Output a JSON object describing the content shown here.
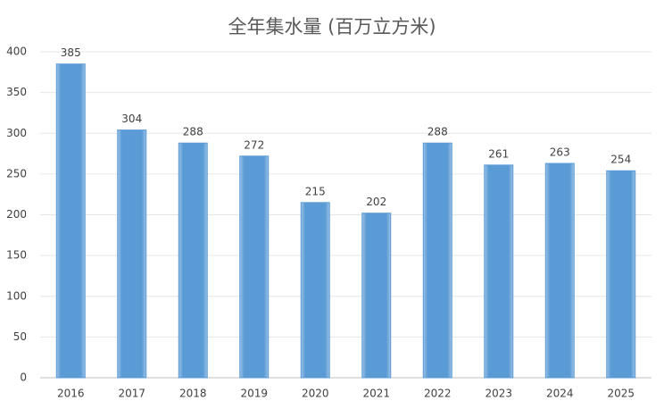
{
  "chart_data": {
    "type": "bar",
    "title": "全年集水量 (百万立方米)",
    "categories": [
      "2016",
      "2017",
      "2018",
      "2019",
      "2020",
      "2021",
      "2022",
      "2023",
      "2024",
      "2025"
    ],
    "values": [
      385,
      304,
      288,
      272,
      215,
      202,
      288,
      261,
      263,
      254
    ],
    "color": "#5b9bd5",
    "ylim": [
      0,
      400
    ],
    "yticks": [
      0,
      50,
      100,
      150,
      200,
      250,
      300,
      350,
      400
    ],
    "grid": true
  }
}
